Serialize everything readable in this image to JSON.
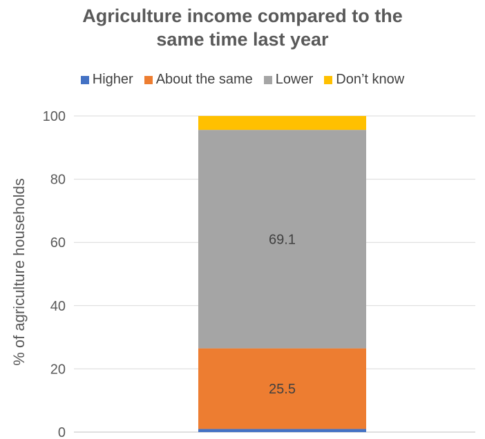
{
  "chart_data": {
    "type": "bar",
    "stacked": true,
    "title_lines": [
      "Agriculture income compared to the",
      "same time last year"
    ],
    "xlabel": "",
    "ylabel": "% of agriculture households",
    "ylim": [
      0,
      100
    ],
    "yticks": [
      0,
      20,
      40,
      60,
      80,
      100
    ],
    "grid": true,
    "legend_position": "top",
    "categories": [
      ""
    ],
    "series": [
      {
        "name": "Higher",
        "color": "#4472C4",
        "values": [
          1.0
        ],
        "label": ""
      },
      {
        "name": "About the same",
        "color": "#ED7D31",
        "values": [
          25.5
        ],
        "label": "25.5"
      },
      {
        "name": "Lower",
        "color": "#A5A5A5",
        "values": [
          69.1
        ],
        "label": "69.1"
      },
      {
        "name": "Don’t know",
        "color": "#FFC000",
        "values": [
          4.4
        ],
        "label": ""
      }
    ]
  }
}
